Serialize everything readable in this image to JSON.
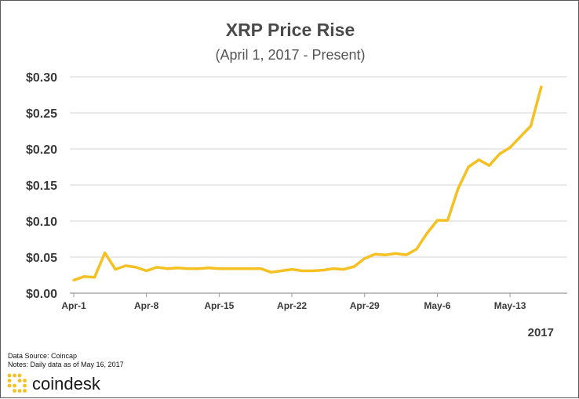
{
  "chart_data": {
    "type": "line",
    "title": "XRP Price Rise",
    "subtitle": "(April 1, 2017 - Present)",
    "xlabel": "",
    "ylabel": "",
    "year_label": "2017",
    "x_tick_labels": [
      "Apr-1",
      "Apr-8",
      "Apr-15",
      "Apr-22",
      "Apr-29",
      "May-6",
      "May-13"
    ],
    "y_tick_labels": [
      "$0.00",
      "$0.05",
      "$0.10",
      "$0.15",
      "$0.20",
      "$0.25",
      "$0.30"
    ],
    "ylim": [
      0,
      0.3
    ],
    "grid": "horizontal",
    "line_color": "#f4c022",
    "series": [
      {
        "x": [
          "Apr-1",
          "Apr-2",
          "Apr-3",
          "Apr-4",
          "Apr-5",
          "Apr-6",
          "Apr-7",
          "Apr-8",
          "Apr-9",
          "Apr-10",
          "Apr-11",
          "Apr-12",
          "Apr-13",
          "Apr-14",
          "Apr-15",
          "Apr-16",
          "Apr-17",
          "Apr-18",
          "Apr-19",
          "Apr-20",
          "Apr-21",
          "Apr-22",
          "Apr-23",
          "Apr-24",
          "Apr-25",
          "Apr-26",
          "Apr-27",
          "Apr-28",
          "Apr-29",
          "Apr-30",
          "May-1",
          "May-2",
          "May-3",
          "May-4",
          "May-5",
          "May-6",
          "May-7",
          "May-8",
          "May-9",
          "May-10",
          "May-11",
          "May-12",
          "May-13",
          "May-14",
          "May-15",
          "May-16"
        ],
        "values": [
          0.018,
          0.023,
          0.022,
          0.056,
          0.033,
          0.038,
          0.036,
          0.031,
          0.036,
          0.034,
          0.035,
          0.034,
          0.034,
          0.035,
          0.034,
          0.034,
          0.034,
          0.034,
          0.034,
          0.029,
          0.031,
          0.033,
          0.031,
          0.031,
          0.032,
          0.034,
          0.033,
          0.037,
          0.048,
          0.054,
          0.053,
          0.055,
          0.053,
          0.061,
          0.083,
          0.101,
          0.101,
          0.145,
          0.175,
          0.185,
          0.177,
          0.193,
          0.202,
          0.217,
          0.232,
          0.286
        ]
      }
    ]
  },
  "footer": {
    "source": "Data Source: Coincap",
    "notes": "Notes: Daily data as of May 16, 2017"
  },
  "brand": {
    "name": "coindesk",
    "logo_icon": "coindesk-dots-icon",
    "accent_color": "#f4c022"
  }
}
